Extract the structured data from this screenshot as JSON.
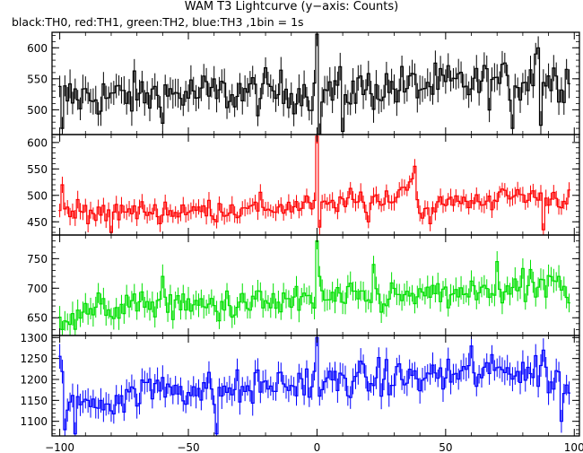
{
  "chart_data": {
    "type": "line",
    "title": "WAM T3 Lightcurve (y−axis: Counts)",
    "subtitle": "black:TH0, red:TH1, green:TH2, blue:TH3 ,1bin = 1s",
    "x_range": [
      -103,
      102
    ],
    "x_ticks": [
      "−100",
      "−50",
      "0",
      "50",
      "100"
    ],
    "x_tick_values": [
      -100,
      -50,
      0,
      50,
      100
    ],
    "panels": [
      {
        "name": "TH0",
        "color": "#000000",
        "ylim": [
          460,
          625
        ],
        "y_ticks": [
          "600",
          "550",
          "500"
        ],
        "y_tick_values": [
          600,
          550,
          500
        ],
        "baseline": [
          [
            -100,
            520
          ],
          [
            -50,
            525
          ],
          [
            0,
            530
          ],
          [
            50,
            540
          ],
          [
            98,
            550
          ]
        ],
        "noise": 25,
        "err": 20,
        "spikes": [
          [
            -99,
            470
          ],
          [
            0,
            622
          ],
          [
            1,
            460
          ],
          [
            10,
            465
          ],
          [
            76,
            470
          ],
          [
            85,
            590
          ],
          [
            86,
            600
          ],
          [
            87,
            475
          ]
        ]
      },
      {
        "name": "TH1",
        "color": "#ff0000",
        "ylim": [
          425,
          615
        ],
        "y_ticks": [
          "600",
          "550",
          "500",
          "450"
        ],
        "y_tick_values": [
          600,
          550,
          500,
          450
        ],
        "baseline": [
          [
            -100,
            470
          ],
          [
            -50,
            470
          ],
          [
            -10,
            478
          ],
          [
            30,
            495
          ],
          [
            37,
            535
          ],
          [
            40,
            465
          ],
          [
            50,
            485
          ],
          [
            80,
            500
          ],
          [
            98,
            495
          ]
        ],
        "noise": 15,
        "err": 14,
        "spikes": [
          [
            -99,
            520
          ],
          [
            -80,
            430
          ],
          [
            0,
            612
          ],
          [
            1,
            440
          ],
          [
            20,
            450
          ],
          [
            38,
            555
          ],
          [
            88,
            435
          ]
        ]
      },
      {
        "name": "TH2",
        "color": "#00e000",
        "ylim": [
          620,
          790
        ],
        "y_ticks": [
          "750",
          "700",
          "650"
        ],
        "y_tick_values": [
          750,
          700,
          650
        ],
        "baseline": [
          [
            -100,
            655
          ],
          [
            -60,
            675
          ],
          [
            -50,
            668
          ],
          [
            0,
            680
          ],
          [
            30,
            685
          ],
          [
            60,
            690
          ],
          [
            92,
            705
          ],
          [
            98,
            675
          ]
        ],
        "noise": 18,
        "err": 17,
        "spikes": [
          [
            -99,
            630
          ],
          [
            -60,
            720
          ],
          [
            0,
            780
          ],
          [
            1,
            720
          ],
          [
            22,
            740
          ],
          [
            70,
            745
          ],
          [
            94,
            720
          ]
        ]
      },
      {
        "name": "TH3",
        "color": "#0000ff",
        "ylim": [
          1065,
          1305
        ],
        "y_ticks": [
          "1300",
          "1250",
          "1200",
          "1150",
          "1100"
        ],
        "y_tick_values": [
          1300,
          1250,
          1200,
          1150,
          1100
        ],
        "baseline": [
          [
            -100,
            1220
          ],
          [
            -96,
            1140
          ],
          [
            -80,
            1150
          ],
          [
            -60,
            1185
          ],
          [
            -40,
            1170
          ],
          [
            -20,
            1185
          ],
          [
            0,
            1195
          ],
          [
            40,
            1205
          ],
          [
            80,
            1225
          ],
          [
            98,
            1190
          ]
        ],
        "noise": 30,
        "err": 26,
        "spikes": [
          [
            -98,
            1080
          ],
          [
            -94,
            1070
          ],
          [
            -39,
            1070
          ],
          [
            0,
            1300
          ],
          [
            1,
            1160
          ],
          [
            60,
            1280
          ],
          [
            88,
            1270
          ],
          [
            95,
            1100
          ]
        ]
      }
    ]
  }
}
